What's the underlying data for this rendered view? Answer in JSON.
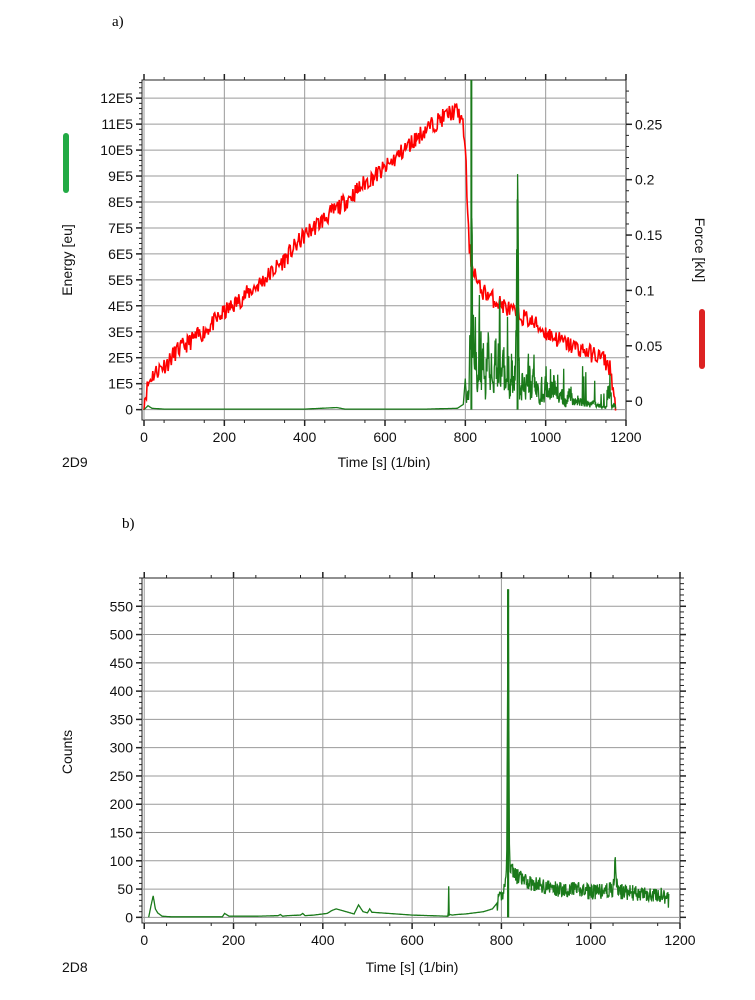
{
  "chart_data": [
    {
      "type": "line",
      "panel_label": "a)",
      "chart_id": "2D9",
      "xlabel": "Time [s] (1/bin)",
      "ylabel": "Energy [eu]",
      "y2label": "Force [kN]",
      "xlim": [
        -5,
        1200
      ],
      "ylim": [
        -0.4,
        12.7
      ],
      "y2lim": [
        -0.017,
        0.29
      ],
      "x_ticks": [
        "0",
        "200",
        "400",
        "600",
        "800",
        "1000",
        "1200"
      ],
      "y_ticks": [
        "0",
        "1E5",
        "2E5",
        "3E5",
        "4E5",
        "5E5",
        "6E5",
        "7E5",
        "8E5",
        "9E5",
        "10E5",
        "11E5",
        "12E5"
      ],
      "y2_ticks": [
        "0",
        "0.05",
        "0.1",
        "0.15",
        "0.2",
        "0.25"
      ],
      "grid": true,
      "colors": {
        "energy": "#1a7a1a",
        "force": "#ff0000",
        "legend_energy": "#22aa44",
        "legend_force": "#dd2222"
      },
      "series": [
        {
          "axis": "left",
          "color": "#1a7a1a",
          "x": [
            0,
            10,
            20,
            50,
            100,
            200,
            300,
            400,
            480,
            500,
            600,
            700,
            780,
            795,
            800,
            805,
            808,
            812,
            815,
            818,
            820,
            822,
            825,
            830,
            835,
            840,
            845,
            850,
            855,
            860,
            865,
            870,
            875,
            880,
            885,
            890,
            895,
            900,
            905,
            910,
            915,
            920,
            925,
            930,
            935,
            940,
            945,
            950,
            955,
            960,
            965,
            970,
            975,
            980,
            985,
            990,
            995,
            1000,
            1010,
            1020,
            1030,
            1040,
            1050,
            1060,
            1070,
            1080,
            1090,
            1100,
            1110,
            1120,
            1130,
            1140,
            1150,
            1160,
            1165,
            1170,
            1175
          ],
          "y": [
            0,
            0.15,
            0.05,
            0.02,
            0.02,
            0.02,
            0.02,
            0.02,
            0.08,
            0.02,
            0.02,
            0.02,
            0.05,
            0.2,
            1.2,
            0.5,
            0.8,
            3.5,
            12.7,
            2.5,
            4.0,
            1.5,
            3.0,
            0.8,
            4.2,
            1.2,
            2.5,
            1.0,
            3.5,
            1.5,
            2.0,
            0.8,
            2.8,
            1.0,
            4.8,
            1.2,
            2.5,
            1.0,
            3.0,
            0.8,
            2.2,
            1.2,
            2.0,
            8.1,
            1.2,
            0.8,
            2.5,
            1.0,
            2.0,
            1.5,
            0.6,
            2.2,
            0.8,
            1.5,
            0.5,
            1.0,
            0.4,
            1.5,
            0.6,
            1.2,
            0.4,
            0.8,
            0.3,
            1.0,
            0.3,
            0.5,
            0.3,
            0.4,
            0.2,
            0.3,
            0.2,
            0.15,
            0.1,
            1.5,
            0.1,
            0.3,
            0.05
          ]
        },
        {
          "axis": "right",
          "color": "#ff0000",
          "x": [
            0,
            10,
            20,
            40,
            60,
            80,
            100,
            150,
            200,
            250,
            300,
            350,
            400,
            450,
            500,
            550,
            600,
            650,
            700,
            740,
            760,
            780,
            790,
            795,
            800,
            803,
            806,
            810,
            815,
            820,
            825,
            830,
            840,
            850,
            860,
            870,
            880,
            900,
            920,
            950,
            980,
            1000,
            1020,
            1050,
            1080,
            1100,
            1120,
            1140,
            1150,
            1160,
            1165,
            1170,
            1175
          ],
          "y": [
            0.0,
            0.015,
            0.023,
            0.03,
            0.035,
            0.045,
            0.05,
            0.063,
            0.08,
            0.095,
            0.11,
            0.128,
            0.15,
            0.165,
            0.18,
            0.197,
            0.21,
            0.228,
            0.245,
            0.255,
            0.26,
            0.262,
            0.255,
            0.245,
            0.232,
            0.2,
            0.165,
            0.14,
            0.125,
            0.12,
            0.115,
            0.105,
            0.1,
            0.098,
            0.095,
            0.092,
            0.09,
            0.085,
            0.08,
            0.075,
            0.068,
            0.062,
            0.058,
            0.052,
            0.048,
            0.045,
            0.042,
            0.04,
            0.035,
            0.03,
            0.02,
            0.005,
            -0.01
          ],
          "noise": 0.008
        }
      ]
    },
    {
      "type": "line",
      "panel_label": "b)",
      "chart_id": "2D8",
      "xlabel": "Time [s] (1/bin)",
      "ylabel": "Counts",
      "xlim": [
        -5,
        1200
      ],
      "ylim": [
        -10,
        600
      ],
      "x_ticks": [
        "0",
        "200",
        "400",
        "600",
        "800",
        "1000",
        "1200"
      ],
      "y_ticks": [
        "0",
        "50",
        "100",
        "150",
        "200",
        "250",
        "300",
        "350",
        "400",
        "450",
        "500",
        "550"
      ],
      "grid": true,
      "colors": {
        "counts": "#1a7a1a"
      },
      "series": [
        {
          "color": "#1a7a1a",
          "x": [
            10,
            15,
            20,
            25,
            30,
            40,
            60,
            100,
            150,
            175,
            180,
            190,
            200,
            250,
            300,
            305,
            310,
            320,
            350,
            355,
            360,
            380,
            410,
            420,
            430,
            470,
            480,
            490,
            500,
            505,
            510,
            600,
            680,
            681,
            682,
            683,
            685,
            690,
            700,
            720,
            740,
            760,
            780,
            800,
            805,
            810,
            812,
            815,
            818,
            820,
            825,
            830,
            840,
            850,
            860,
            880,
            900,
            920,
            950,
            980,
            1000,
            1020,
            1050,
            1055,
            1060,
            1080,
            1100,
            1120,
            1140,
            1160,
            1175
          ],
          "y": [
            0,
            20,
            38,
            15,
            8,
            2,
            1,
            1,
            1,
            1,
            7,
            2,
            2,
            2,
            3,
            5,
            2,
            3,
            4,
            7,
            3,
            4,
            7,
            12,
            15,
            6,
            22,
            10,
            8,
            15,
            9,
            4,
            2,
            10,
            55,
            4,
            5,
            4,
            5,
            6,
            8,
            10,
            15,
            35,
            50,
            65,
            120,
            580,
            130,
            90,
            85,
            75,
            70,
            65,
            62,
            58,
            55,
            50,
            50,
            48,
            45,
            45,
            50,
            95,
            45,
            45,
            42,
            40,
            40,
            38,
            30
          ],
          "noise": 14
        }
      ]
    }
  ]
}
